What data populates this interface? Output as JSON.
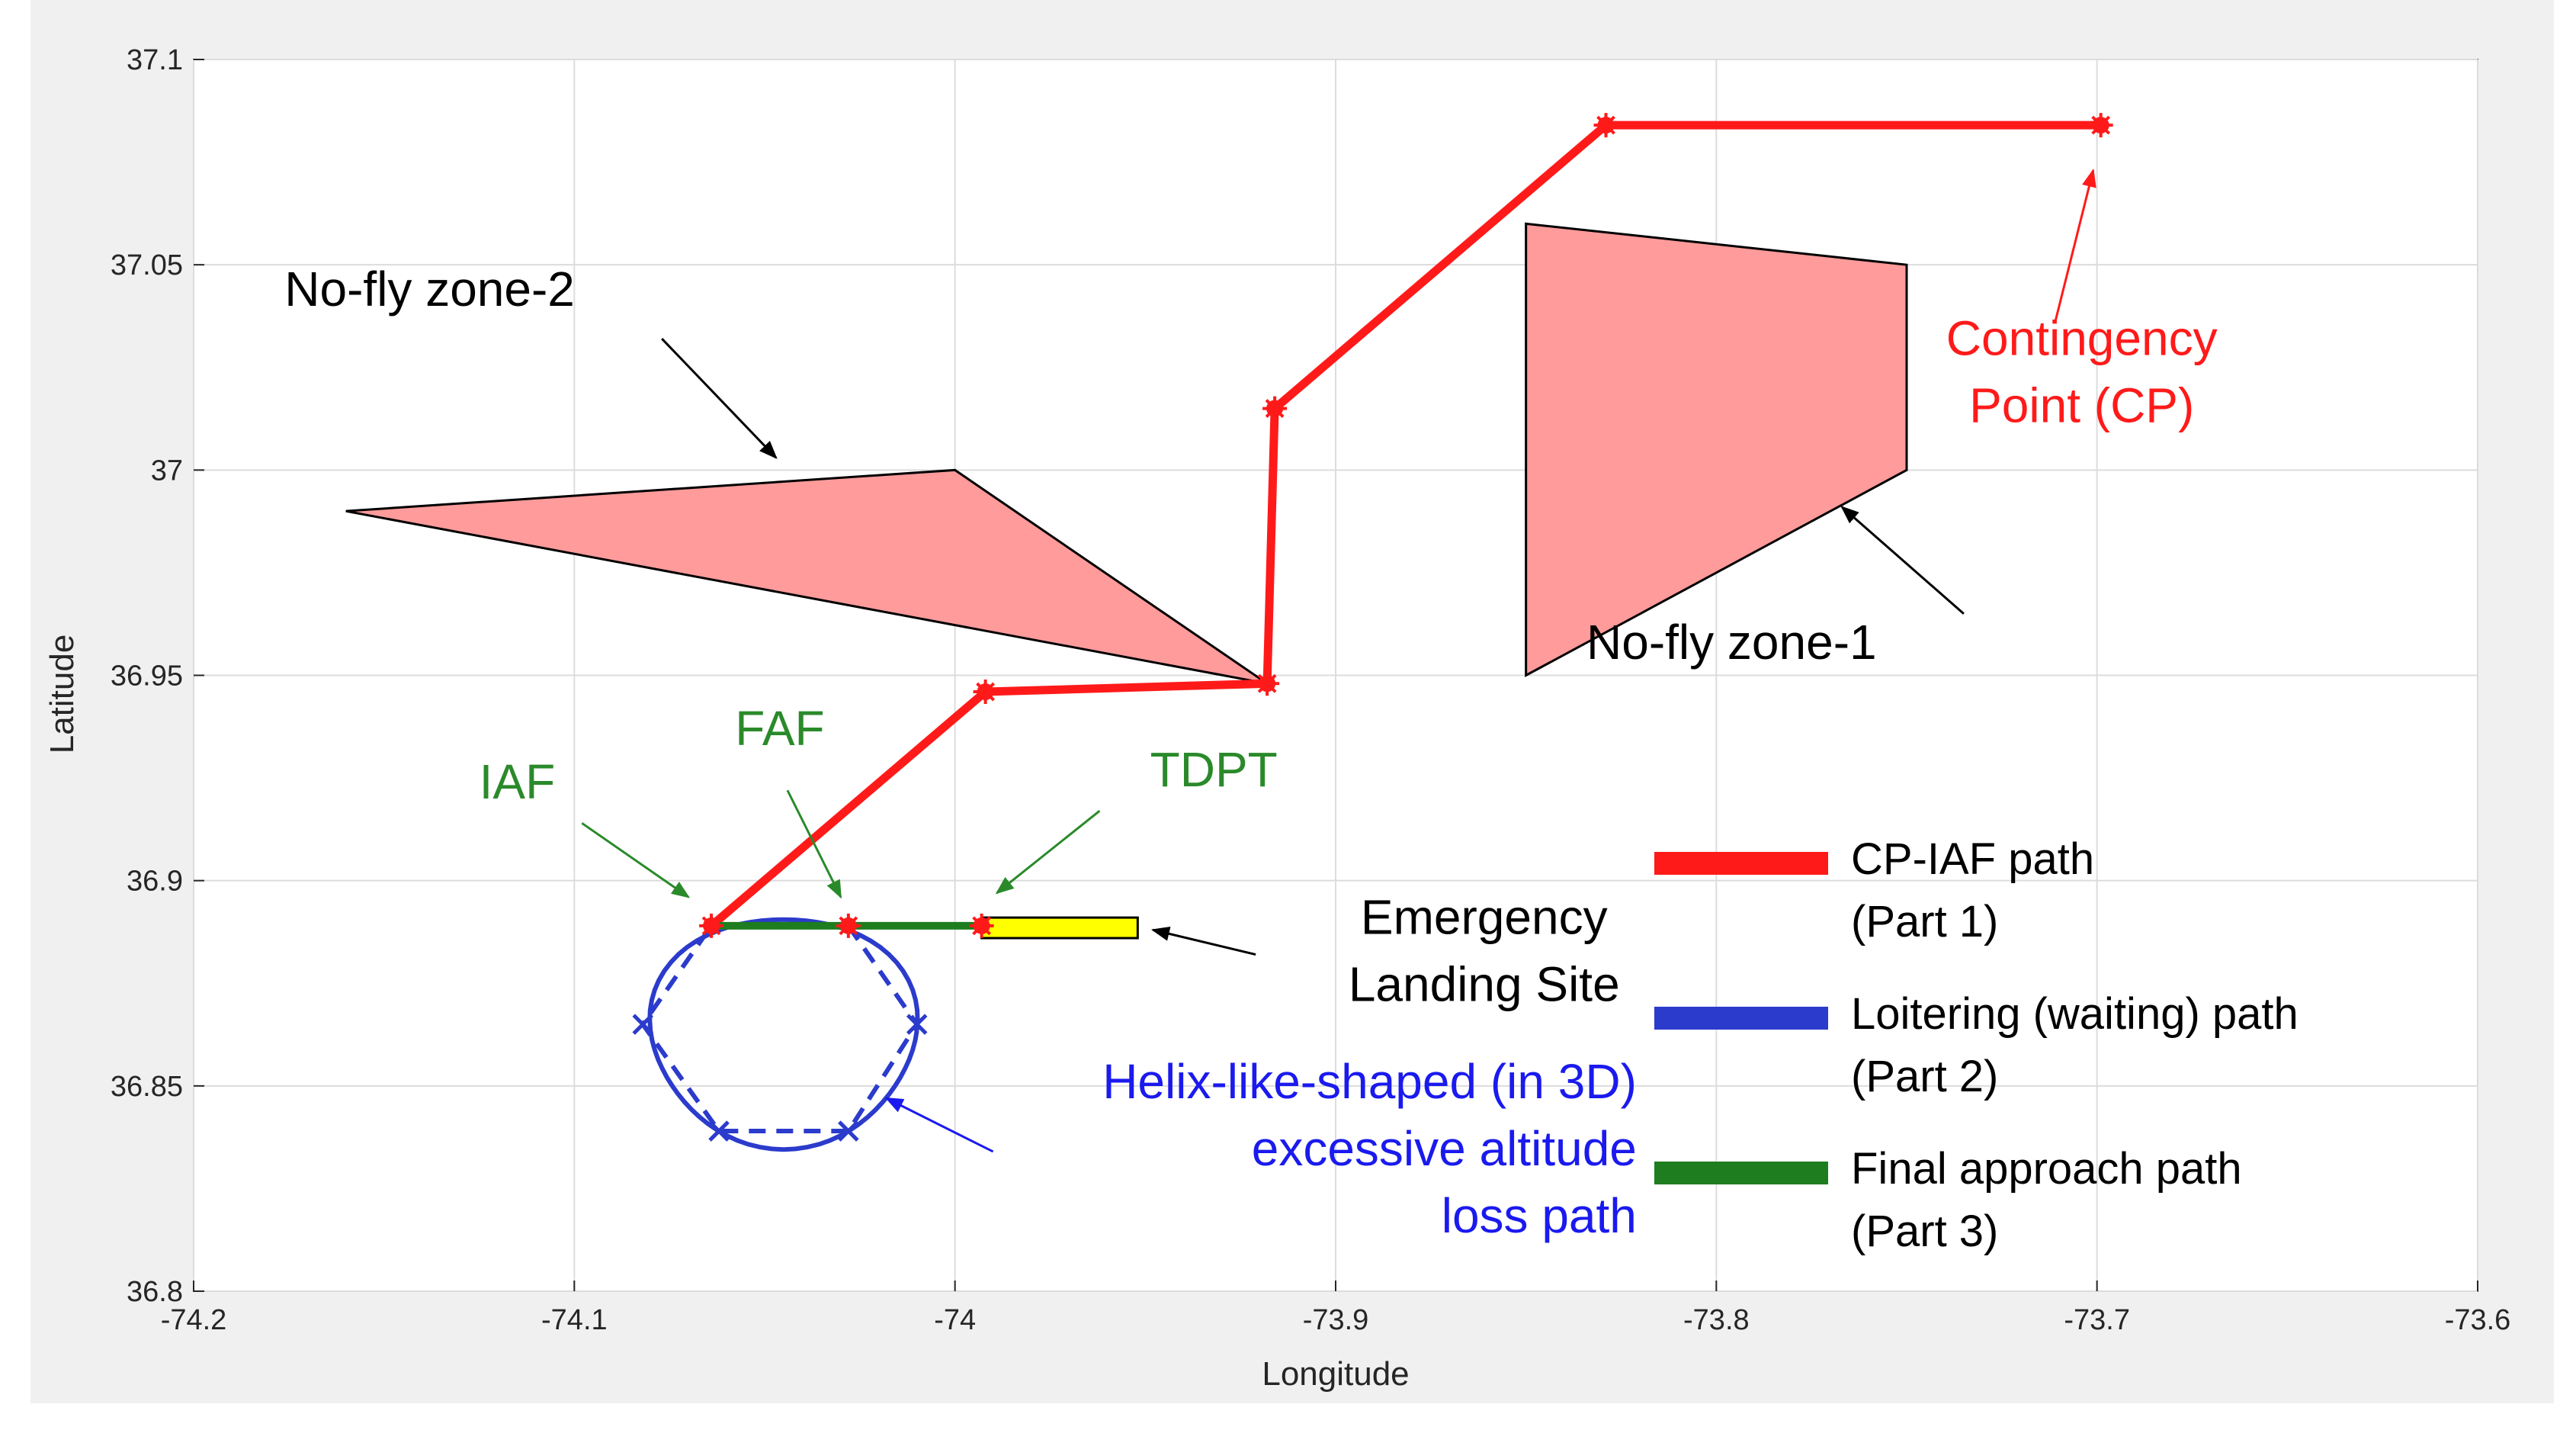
{
  "chart_data": {
    "type": "line",
    "xlabel": "Longitude",
    "ylabel": "Latitude",
    "xlim": [
      -74.2,
      -73.6
    ],
    "ylim": [
      36.8,
      37.1
    ],
    "grid": true,
    "xticks": [
      -74.2,
      -74.1,
      -74,
      -73.9,
      -73.8,
      -73.7,
      -73.6
    ],
    "xtick_labels": [
      "-74.2",
      "-74.1",
      "-74",
      "-73.9",
      "-73.8",
      "-73.7",
      "-73.6"
    ],
    "yticks": [
      36.8,
      36.85,
      36.9,
      36.95,
      37,
      37.05,
      37.1
    ],
    "ytick_labels": [
      "36.8",
      "36.85",
      "36.9",
      "36.95",
      "37",
      "37.05",
      "37.1"
    ],
    "colors": {
      "red": "#ff1a1a",
      "blue": "#2b3bcc",
      "green": "#1e7d1e",
      "zone_fill": "#ff9b9b",
      "site_fill": "#ffff00",
      "label_green": "#2a8a2a",
      "label_red": "#ff1a1a",
      "label_blue": "#1a1aee",
      "axes_bg": "#ffffff",
      "frame_bg": "#f0f0f0",
      "grid": "#dcdcdc"
    },
    "no_fly_zones": [
      {
        "name": "No-fly zone-1",
        "vertices": [
          [
            -73.85,
            37.06
          ],
          [
            -73.75,
            37.05
          ],
          [
            -73.75,
            37.0
          ],
          [
            -73.85,
            36.95
          ]
        ]
      },
      {
        "name": "No-fly zone-2",
        "vertices": [
          [
            -74.16,
            36.99
          ],
          [
            -74.0,
            37.0
          ],
          [
            -73.918,
            36.948
          ]
        ]
      }
    ],
    "landing_site": {
      "name": "Emergency Landing Site",
      "x": [
        -73.993,
        -73.952
      ],
      "y": [
        36.886,
        36.891
      ]
    },
    "series": [
      {
        "name": "CP-IAF path (Part 1)",
        "color": "red",
        "x": [
          -73.699,
          -73.829,
          -73.916,
          -73.918,
          -73.992,
          -74.064
        ],
        "y": [
          37.084,
          37.084,
          37.015,
          36.948,
          36.946,
          36.889
        ]
      },
      {
        "name": "Loitering (waiting) path (Part 2)",
        "color": "blue",
        "dashed_polygon": {
          "x": [
            -74.064,
            -74.028,
            -74.01,
            -74.028,
            -74.062,
            -74.082,
            -74.064
          ],
          "y": [
            36.889,
            36.889,
            36.865,
            36.839,
            36.839,
            36.865,
            36.889
          ]
        },
        "solid_loop": {
          "center": [
            -74.045,
            36.8635
          ],
          "radius_x": 0.035,
          "radius_y": 0.028
        }
      },
      {
        "name": "Final approach path (Part 3)",
        "color": "green",
        "x": [
          -74.064,
          -74.028,
          -73.993
        ],
        "y": [
          36.889,
          36.889,
          36.889
        ]
      }
    ],
    "waypoints": {
      "red": [
        [
          -73.699,
          37.084
        ],
        [
          -73.829,
          37.084
        ],
        [
          -73.916,
          37.015
        ],
        [
          -73.918,
          36.948
        ],
        [
          -73.992,
          36.946
        ],
        [
          -74.064,
          36.889
        ],
        [
          -74.028,
          36.889
        ],
        [
          -73.993,
          36.889
        ]
      ],
      "blue": [
        [
          -74.082,
          36.865
        ],
        [
          -74.01,
          36.865
        ],
        [
          -74.062,
          36.839
        ],
        [
          -74.028,
          36.839
        ]
      ]
    },
    "annotations": [
      {
        "id": "nfz2",
        "lines": [
          "No-fly zone-2"
        ],
        "color": "black",
        "x": -74.138,
        "y": 37.04,
        "arrow_from": [
          -74.077,
          37.032
        ],
        "arrow_to": [
          -74.047,
          37.003
        ]
      },
      {
        "id": "nfz1",
        "lines": [
          "No-fly zone-1"
        ],
        "color": "black",
        "x": -73.796,
        "y": 36.954,
        "arrow_from": [
          -73.735,
          36.965
        ],
        "arrow_to": [
          -73.767,
          36.991
        ]
      },
      {
        "id": "cp",
        "lines": [
          "Contingency",
          "Point (CP)"
        ],
        "color": "label_red",
        "x": -73.704,
        "y": 37.028,
        "arrow_from": [
          -73.711,
          37.036
        ],
        "arrow_to": [
          -73.701,
          37.073
        ]
      },
      {
        "id": "iaf",
        "lines": [
          "IAF"
        ],
        "color": "label_green",
        "x": -74.115,
        "y": 36.92,
        "arrow_from": [
          -74.098,
          36.914
        ],
        "arrow_to": [
          -74.07,
          36.896
        ]
      },
      {
        "id": "faf",
        "lines": [
          "FAF"
        ],
        "color": "label_green",
        "x": -74.046,
        "y": 36.933,
        "arrow_from": [
          -74.044,
          36.922
        ],
        "arrow_to": [
          -74.03,
          36.896
        ]
      },
      {
        "id": "tdpt",
        "lines": [
          "TDPT"
        ],
        "color": "label_green",
        "x": -73.932,
        "y": 36.923,
        "arrow_from": [
          -73.962,
          36.917
        ],
        "arrow_to": [
          -73.989,
          36.897
        ]
      },
      {
        "id": "els",
        "lines": [
          "Emergency",
          "Landing Site"
        ],
        "color": "black",
        "x": -73.861,
        "y": 36.887,
        "arrow_from": [
          -73.921,
          36.882
        ],
        "arrow_to": [
          -73.948,
          36.888
        ]
      },
      {
        "id": "helix",
        "lines": [
          "Helix-like-shaped (in 3D)",
          "excessive altitude",
          "loss path"
        ],
        "color": "label_blue",
        "x": -73.885,
        "y": 36.847,
        "arrow_from": [
          -73.99,
          36.834
        ],
        "arrow_to": [
          -74.018,
          36.847
        ]
      }
    ],
    "legend": {
      "placement": "bottom-right",
      "entries": [
        {
          "color": "red",
          "lines": [
            "CP-IAF path",
            "(Part 1)"
          ]
        },
        {
          "color": "blue",
          "lines": [
            "Loitering (waiting) path",
            "(Part 2)"
          ]
        },
        {
          "color": "green",
          "lines": [
            "Final approach path",
            "(Part 3)"
          ]
        }
      ]
    }
  }
}
